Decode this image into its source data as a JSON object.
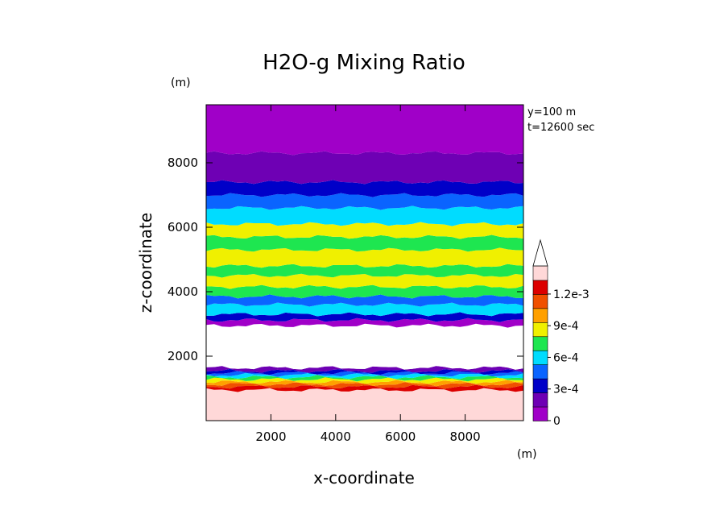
{
  "chart_data": {
    "type": "heatmap",
    "title": "H2O-g Mixing Ratio",
    "xlabel": "x-coordinate",
    "ylabel": "z-coordinate",
    "x_unit": "(m)",
    "y_unit": "(m)",
    "annotations": [
      "y=100 m",
      "t=12600 sec"
    ],
    "xlim": [
      0,
      9800
    ],
    "ylim": [
      0,
      9800
    ],
    "x_ticks": [
      2000,
      4000,
      6000,
      8000
    ],
    "y_ticks": [
      2000,
      4000,
      6000,
      8000
    ],
    "colorbar": {
      "levels": [
        0,
        0.00015,
        0.0003,
        0.00045,
        0.0006,
        0.00075,
        0.0009,
        0.00105,
        0.0012
      ],
      "tick_labels": [
        "0",
        "3e-4",
        "6e-4",
        "9e-4",
        "1.2e-3"
      ],
      "colors": [
        "#a000c8",
        "#6e00b4",
        "#0000c8",
        "#0a64ff",
        "#00dcff",
        "#1ee650",
        "#f0f000",
        "#ffa000",
        "#f05000",
        "#dc0000",
        "#ffd8d8"
      ],
      "extend": "max"
    },
    "bands": [
      {
        "z": [
          0,
          950
        ],
        "color": "#ffd8d8"
      },
      {
        "z": [
          950,
          1050
        ],
        "color": "#dc0000"
      },
      {
        "z": [
          1050,
          1130
        ],
        "color": "#f05000"
      },
      {
        "z": [
          1130,
          1200
        ],
        "color": "#ffa000"
      },
      {
        "z": [
          1200,
          1280
        ],
        "color": "#f0f000"
      },
      {
        "z": [
          1280,
          1350
        ],
        "color": "#1ee650"
      },
      {
        "z": [
          1350,
          1420
        ],
        "color": "#00dcff"
      },
      {
        "z": [
          1420,
          1480
        ],
        "color": "#0a64ff"
      },
      {
        "z": [
          1480,
          1540
        ],
        "color": "#0000c8"
      },
      {
        "z": [
          1540,
          1640
        ],
        "color": "#6e00b4"
      },
      {
        "z": [
          1640,
          2950
        ],
        "color": "#ffffff"
      },
      {
        "z": [
          2950,
          3120
        ],
        "color": "#a000c8"
      },
      {
        "z": [
          3120,
          3300
        ],
        "color": "#0000c8"
      },
      {
        "z": [
          3300,
          3600
        ],
        "color": "#00dcff"
      },
      {
        "z": [
          3600,
          3850
        ],
        "color": "#0a64ff"
      },
      {
        "z": [
          3850,
          4150
        ],
        "color": "#1ee650"
      },
      {
        "z": [
          4150,
          4500
        ],
        "color": "#f0f000"
      },
      {
        "z": [
          4500,
          4800
        ],
        "color": "#1ee650"
      },
      {
        "z": [
          4800,
          5300
        ],
        "color": "#f0f000"
      },
      {
        "z": [
          5300,
          5700
        ],
        "color": "#1ee650"
      },
      {
        "z": [
          5700,
          6100
        ],
        "color": "#f0f000"
      },
      {
        "z": [
          6100,
          6600
        ],
        "color": "#00dcff"
      },
      {
        "z": [
          6600,
          7000
        ],
        "color": "#0a64ff"
      },
      {
        "z": [
          7000,
          7400
        ],
        "color": "#0000c8"
      },
      {
        "z": [
          7400,
          8300
        ],
        "color": "#6e00b4"
      },
      {
        "z": [
          8300,
          9800
        ],
        "color": "#a000c8"
      }
    ]
  }
}
